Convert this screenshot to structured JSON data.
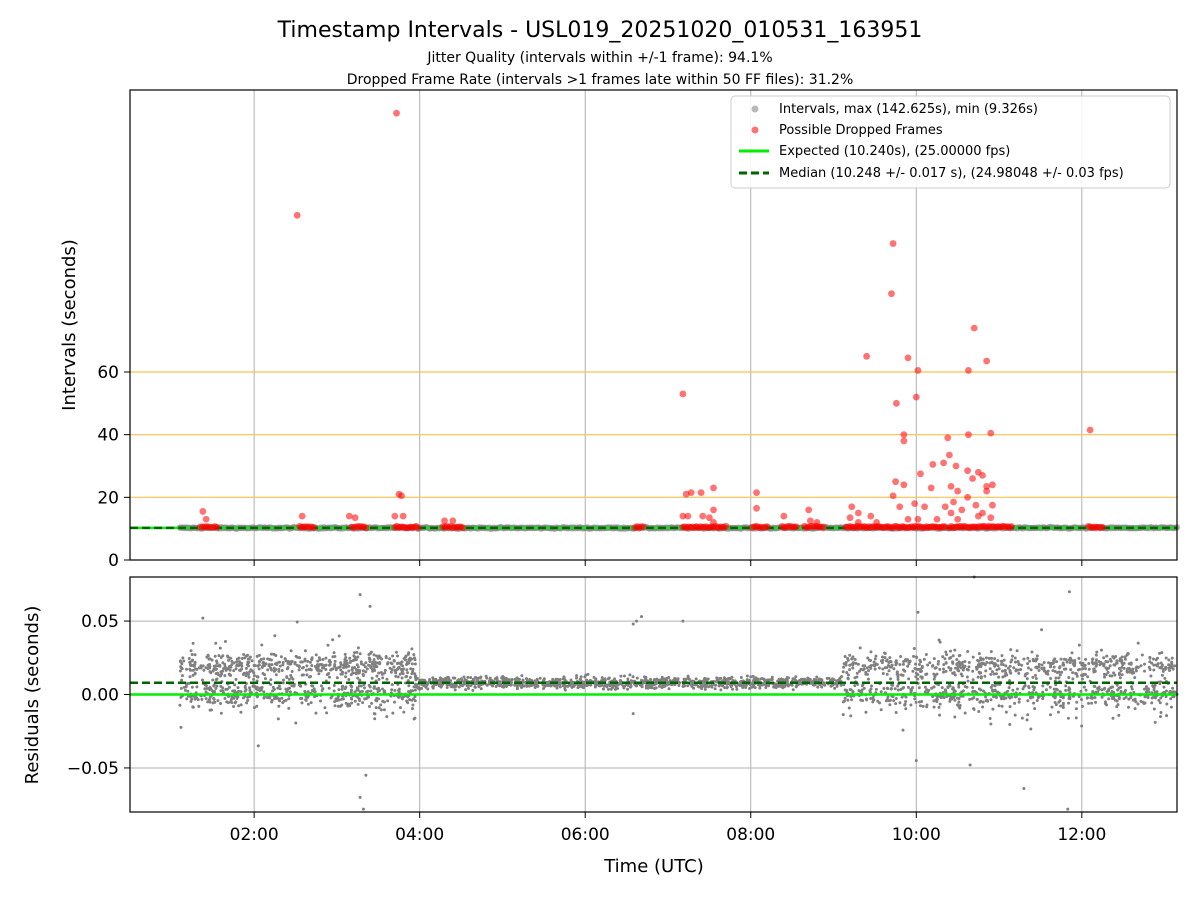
{
  "figure": {
    "title": "Timestamp Intervals - USL019_20251020_010531_163951",
    "subtitle_1": "Jitter Quality (intervals within +/-1 frame): 94.1%",
    "subtitle_2": "Dropped Frame Rate (intervals >1 frames late within 50 FF files): 31.2%"
  },
  "colors": {
    "intervals": "#808080",
    "dropped": "#ff0000",
    "expected": "#00ee00",
    "median": "#006400",
    "threshold": "#ffc04d",
    "grid": "#b0b0b0"
  },
  "chart_data": [
    {
      "type": "scatter",
      "name": "intervals",
      "xlabel": "",
      "ylabel": "Intervals (seconds)",
      "x_unit": "hours UTC",
      "xlim": [
        0.5,
        13.15
      ],
      "ylim": [
        0,
        150
      ],
      "y_ticks": [
        0,
        20,
        40,
        60
      ],
      "x_ticks": [
        2,
        4,
        6,
        8,
        10,
        12
      ],
      "grid": "vertical",
      "legend_position": "top-right",
      "threshold_lines": [
        20,
        40,
        60
      ],
      "expected": 10.24,
      "median": 10.248,
      "legend": {
        "intervals": "Intervals, max (142.625s), min (9.326s)",
        "dropped": "Possible Dropped Frames",
        "expected": "Expected (10.240s), (25.00000 fps)",
        "median": "Median (10.248 +/- 0.017 s), (24.98048 +/- 0.03 fps)"
      },
      "interval_range": [
        1.1,
        13.15
      ],
      "dropped_clusters": [
        [
          1.35,
          1.55
        ],
        [
          2.55,
          2.72
        ],
        [
          3.18,
          3.35
        ],
        [
          3.7,
          3.98
        ],
        [
          4.28,
          4.52
        ],
        [
          6.6,
          6.7
        ],
        [
          7.18,
          7.7
        ],
        [
          8.02,
          8.2
        ],
        [
          8.38,
          8.55
        ],
        [
          8.65,
          8.88
        ],
        [
          9.15,
          10.35
        ],
        [
          10.4,
          11.15
        ],
        [
          12.08,
          12.25
        ]
      ],
      "dropped_outliers": [
        [
          3.72,
          142.6
        ],
        [
          2.52,
          110.0
        ],
        [
          9.72,
          101.0
        ],
        [
          9.7,
          85.0
        ],
        [
          10.7,
          74.0
        ],
        [
          9.4,
          65.0
        ],
        [
          9.9,
          64.5
        ],
        [
          10.85,
          63.5
        ],
        [
          10.02,
          60.5
        ],
        [
          10.63,
          60.5
        ],
        [
          7.18,
          53.0
        ],
        [
          10.0,
          52.0
        ],
        [
          9.76,
          50.0
        ],
        [
          12.1,
          41.5
        ],
        [
          10.9,
          40.5
        ],
        [
          9.85,
          40.0
        ],
        [
          10.63,
          40.0
        ],
        [
          9.85,
          38.0
        ],
        [
          10.38,
          39.0
        ],
        [
          10.2,
          30.5
        ],
        [
          10.33,
          31.0
        ],
        [
          10.4,
          33.5
        ],
        [
          10.48,
          30.0
        ],
        [
          10.62,
          28.5
        ],
        [
          10.75,
          28.0
        ],
        [
          10.8,
          27.0
        ],
        [
          10.05,
          27.5
        ],
        [
          10.68,
          26.0
        ],
        [
          9.75,
          25.0
        ],
        [
          9.85,
          24.0
        ],
        [
          10.42,
          23.5
        ],
        [
          10.85,
          23.5
        ],
        [
          10.92,
          24.0
        ],
        [
          7.55,
          23.0
        ],
        [
          10.18,
          23.0
        ],
        [
          10.5,
          22.0
        ],
        [
          7.28,
          21.5
        ],
        [
          7.4,
          21.5
        ],
        [
          8.07,
          21.5
        ],
        [
          3.75,
          21.0
        ],
        [
          3.78,
          20.5
        ],
        [
          7.22,
          21.0
        ],
        [
          9.72,
          20.5
        ],
        [
          10.85,
          22.0
        ],
        [
          10.62,
          20.0
        ],
        [
          9.98,
          18.0
        ],
        [
          10.45,
          18.5
        ],
        [
          10.35,
          17.0
        ],
        [
          10.72,
          17.5
        ],
        [
          10.92,
          17.5
        ],
        [
          9.22,
          17.0
        ],
        [
          9.8,
          17.0
        ],
        [
          8.07,
          16.5
        ],
        [
          10.1,
          17.0
        ],
        [
          10.55,
          16.0
        ],
        [
          8.7,
          16.0
        ],
        [
          1.38,
          15.5
        ],
        [
          7.55,
          16.0
        ],
        [
          9.3,
          15.0
        ],
        [
          10.8,
          15.0
        ],
        [
          10.42,
          15.0
        ],
        [
          3.15,
          14.0
        ],
        [
          3.22,
          13.5
        ],
        [
          7.18,
          14.0
        ],
        [
          7.24,
          14.0
        ],
        [
          7.42,
          14.0
        ],
        [
          3.7,
          14.0
        ],
        [
          3.8,
          14.0
        ],
        [
          2.58,
          14.0
        ],
        [
          8.4,
          14.0
        ],
        [
          9.45,
          14.0
        ],
        [
          10.75,
          14.0
        ],
        [
          10.9,
          13.5
        ],
        [
          1.42,
          13.0
        ],
        [
          4.3,
          12.5
        ],
        [
          4.4,
          12.5
        ],
        [
          7.5,
          13.5
        ],
        [
          7.55,
          12.0
        ],
        [
          8.8,
          12.0
        ],
        [
          9.3,
          12.0
        ],
        [
          9.52,
          12.0
        ],
        [
          9.9,
          13.0
        ],
        [
          10.02,
          13.0
        ],
        [
          10.25,
          13.0
        ],
        [
          10.5,
          13.0
        ],
        [
          8.72,
          12.5
        ],
        [
          9.2,
          13.5
        ]
      ]
    },
    {
      "type": "scatter",
      "name": "residuals",
      "xlabel": "Time (UTC)",
      "ylabel": "Residuals (seconds)",
      "x_unit": "hours UTC",
      "xlim": [
        0.5,
        13.15
      ],
      "ylim": [
        -0.08,
        0.08
      ],
      "y_ticks": [
        -0.05,
        0.0,
        0.05
      ],
      "y_tick_labels": [
        "−0.05",
        "0.00",
        "0.05"
      ],
      "x_ticks": [
        2,
        4,
        6,
        8,
        10,
        12
      ],
      "x_tick_labels": [
        "02:00",
        "04:00",
        "06:00",
        "08:00",
        "10:00",
        "12:00"
      ],
      "grid": "both",
      "expected": 0.0,
      "median": 0.008,
      "segments": [
        {
          "x": [
            1.1,
            3.95
          ],
          "center": 0.01,
          "spread": 0.022,
          "points": 900
        },
        {
          "x": [
            3.95,
            9.1
          ],
          "center": 0.008,
          "spread": 0.004,
          "points": 1100
        },
        {
          "x": [
            9.1,
            13.15
          ],
          "center": 0.008,
          "spread": 0.022,
          "points": 1100
        }
      ],
      "residual_outliers": [
        [
          3.28,
          0.068
        ],
        [
          3.4,
          0.06
        ],
        [
          3.32,
          -0.078
        ],
        [
          3.28,
          -0.07
        ],
        [
          3.35,
          -0.055
        ],
        [
          10.02,
          0.056
        ],
        [
          10.7,
          0.08
        ],
        [
          11.85,
          0.07
        ],
        [
          11.83,
          -0.078
        ],
        [
          11.3,
          -0.064
        ],
        [
          10.65,
          -0.048
        ],
        [
          10.0,
          -0.045
        ],
        [
          6.62,
          0.05
        ],
        [
          6.68,
          0.053
        ],
        [
          6.58,
          0.048
        ],
        [
          7.18,
          0.05
        ],
        [
          6.58,
          -0.013
        ],
        [
          1.38,
          0.052
        ],
        [
          2.25,
          0.04
        ],
        [
          2.05,
          -0.035
        ]
      ]
    }
  ]
}
